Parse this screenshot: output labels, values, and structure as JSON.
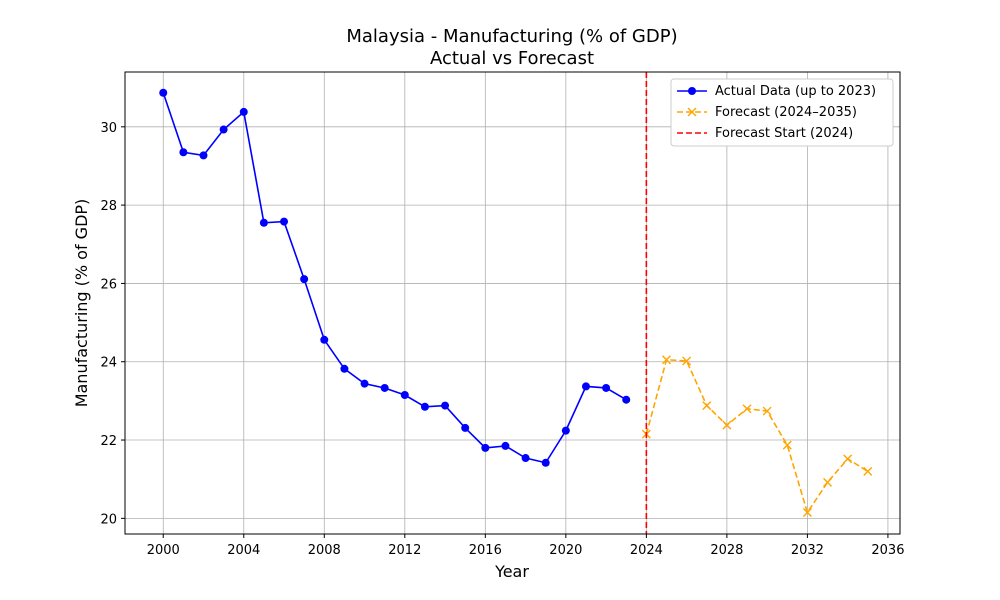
{
  "chart_data": {
    "type": "line",
    "title": "Malaysia - Manufacturing (% of GDP)",
    "subtitle": "Actual vs Forecast",
    "xlabel": "Year",
    "ylabel": "Manufacturing (% of GDP)",
    "xlim": [
      1998.1,
      2036.6
    ],
    "ylim": [
      19.6,
      31.4
    ],
    "xticks": [
      2000,
      2004,
      2008,
      2012,
      2016,
      2020,
      2024,
      2028,
      2032,
      2036
    ],
    "yticks": [
      20,
      22,
      24,
      26,
      28,
      30
    ],
    "grid": true,
    "legend_position": "top-right",
    "series": [
      {
        "name": "Actual Data (up to 2023)",
        "color": "#0000ff",
        "style": "solid",
        "marker": "circle",
        "x": [
          2000,
          2001,
          2002,
          2003,
          2004,
          2005,
          2006,
          2007,
          2008,
          2009,
          2010,
          2011,
          2012,
          2013,
          2014,
          2015,
          2016,
          2017,
          2018,
          2019,
          2020,
          2021,
          2022,
          2023
        ],
        "y": [
          30.87,
          29.35,
          29.27,
          29.93,
          30.38,
          27.55,
          27.58,
          26.11,
          24.56,
          23.82,
          23.44,
          23.33,
          23.15,
          22.85,
          22.88,
          22.31,
          21.8,
          21.85,
          21.54,
          21.42,
          22.24,
          23.37,
          23.33,
          23.03
        ]
      },
      {
        "name": "Forecast (2024–2035)",
        "color": "#ffa500",
        "style": "dashed",
        "marker": "x",
        "x": [
          2024,
          2025,
          2026,
          2027,
          2028,
          2029,
          2030,
          2031,
          2032,
          2033,
          2034,
          2035
        ],
        "y": [
          22.15,
          24.05,
          24.02,
          22.88,
          22.38,
          22.8,
          22.74,
          21.87,
          20.15,
          20.92,
          21.52,
          21.2
        ]
      }
    ],
    "vline": {
      "name": "Forecast Start (2024)",
      "x": 2024,
      "color": "#ff0000",
      "style": "dashed"
    }
  }
}
